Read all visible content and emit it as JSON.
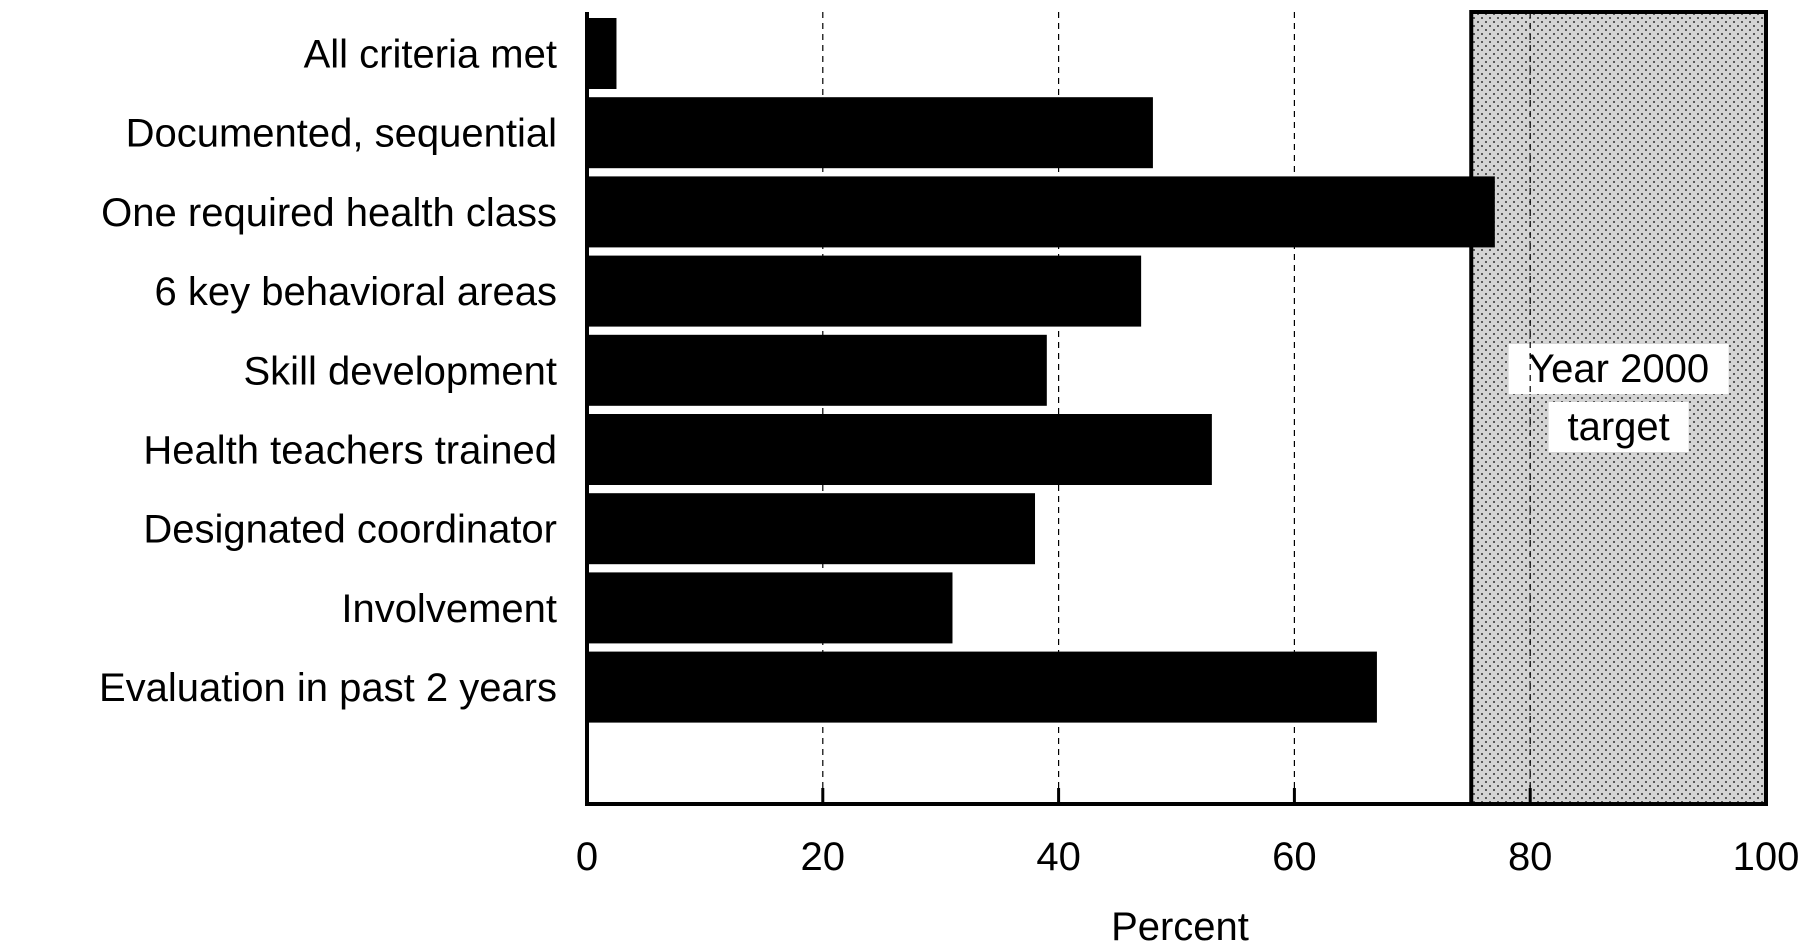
{
  "chart_data": {
    "type": "bar",
    "orientation": "horizontal",
    "categories": [
      "All criteria met",
      "Documented, sequential",
      "One required health class",
      "6 key behavioral areas",
      "Skill development",
      "Health teachers trained",
      "Designated coordinator",
      "Involvement",
      "Evaluation in past 2 years"
    ],
    "values": [
      2.5,
      48,
      77,
      47,
      39,
      53,
      38,
      31,
      67
    ],
    "xlabel": "Percent",
    "xlim": [
      0,
      100
    ],
    "xticks": [
      0,
      20,
      40,
      60,
      80,
      100
    ],
    "grid": "dashed vertical lines at 20, 40, 60",
    "bar_color": "#000000",
    "target_region": {
      "range": [
        75,
        100
      ],
      "label_lines": [
        "Year 2000",
        "target"
      ],
      "fill": "stippled gray"
    }
  }
}
